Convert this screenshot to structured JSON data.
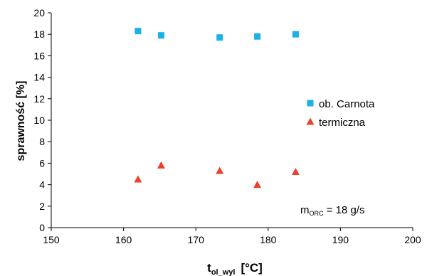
{
  "chart_data": {
    "type": "scatter",
    "xlabel": {
      "main": "t",
      "sub": "ol_wyl",
      "unit": "[°C]"
    },
    "ylabel": "sprawność  [%]",
    "xlim": [
      150,
      200
    ],
    "ylim": [
      0,
      20
    ],
    "xticks": [
      150,
      160,
      170,
      180,
      190,
      200
    ],
    "yticks": [
      0,
      2,
      4,
      6,
      8,
      10,
      12,
      14,
      16,
      18,
      20
    ],
    "grid": false,
    "legend_position": "right",
    "series": [
      {
        "name": "ob. Carnota",
        "marker": "square",
        "color": "#1ab0e8",
        "points": [
          [
            162,
            18.3
          ],
          [
            165.2,
            17.9
          ],
          [
            173.3,
            17.7
          ],
          [
            178.5,
            17.8
          ],
          [
            183.8,
            18.0
          ]
        ]
      },
      {
        "name": "termiczna",
        "marker": "triangle",
        "color": "#e8412c",
        "points": [
          [
            162,
            4.5
          ],
          [
            165.2,
            5.8
          ],
          [
            173.3,
            5.3
          ],
          [
            178.5,
            4.0
          ],
          [
            183.8,
            5.2
          ]
        ]
      }
    ],
    "annotation": {
      "main": "m",
      "sub": "ORC",
      "rest": " = 18 g/s"
    }
  }
}
